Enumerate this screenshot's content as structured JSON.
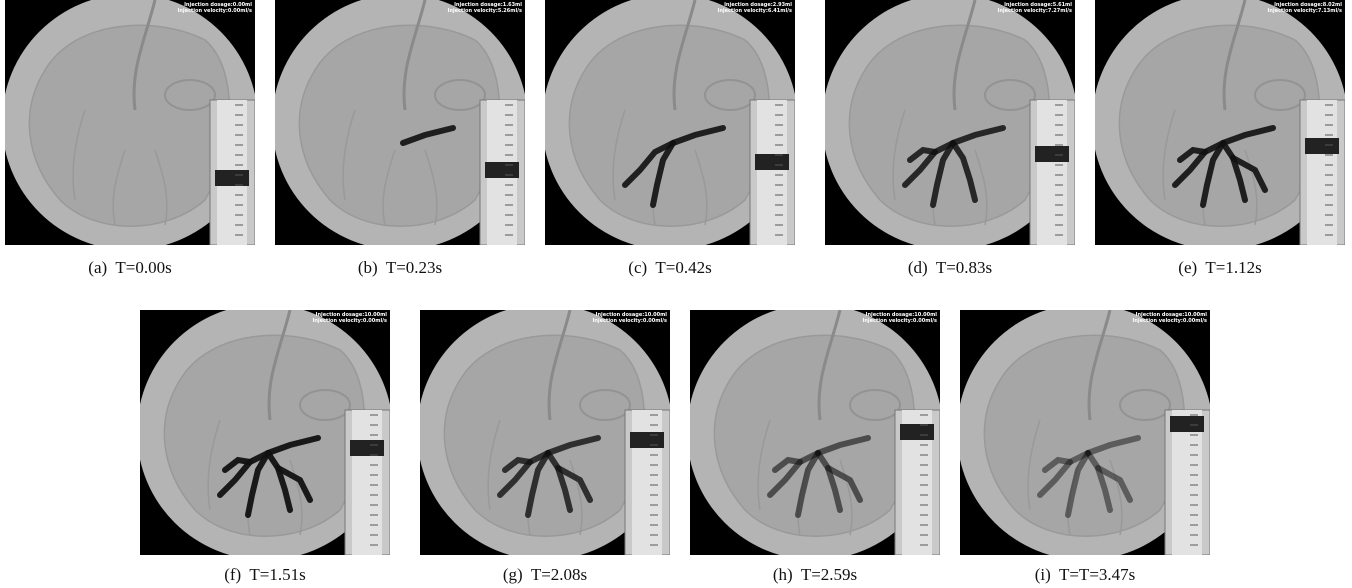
{
  "figure": {
    "panels": [
      {
        "caption": "(a)  T=0.00s",
        "overlay": [
          "Injection dosage:0.00ml",
          "Injection velocity:0.00ml/s"
        ]
      },
      {
        "caption": "(b)  T=0.23s",
        "overlay": [
          "Injection dosage:1.63ml",
          "Injection velocity:5.26ml/s"
        ]
      },
      {
        "caption": "(c)  T=0.42s",
        "overlay": [
          "Injection dosage:2.93ml",
          "Injection velocity:6.41ml/s"
        ]
      },
      {
        "caption": "(d)  T=0.83s",
        "overlay": [
          "Injection dosage:5.61ml",
          "Injection velocity:7.27ml/s"
        ]
      },
      {
        "caption": "(e)  T=1.12s",
        "overlay": [
          "Injection dosage:8.02ml",
          "Injection velocity:7.13ml/s"
        ]
      },
      {
        "caption": "(f)  T=1.51s",
        "overlay": [
          "Injection dosage:10.00ml",
          "Injection velocity:0.00ml/s"
        ]
      },
      {
        "caption": "(g)  T=2.08s",
        "overlay": [
          "Injection dosage:10.00ml",
          "Injection velocity:0.00ml/s"
        ]
      },
      {
        "caption": "(h)  T=2.59s",
        "overlay": [
          "Injection dosage:10.00ml",
          "Injection velocity:0.00ml/s"
        ]
      },
      {
        "caption": "(i)  T=T=3.47s",
        "overlay": [
          "Injection dosage:10.00ml",
          "Injection velocity:0.00ml/s"
        ]
      }
    ]
  }
}
